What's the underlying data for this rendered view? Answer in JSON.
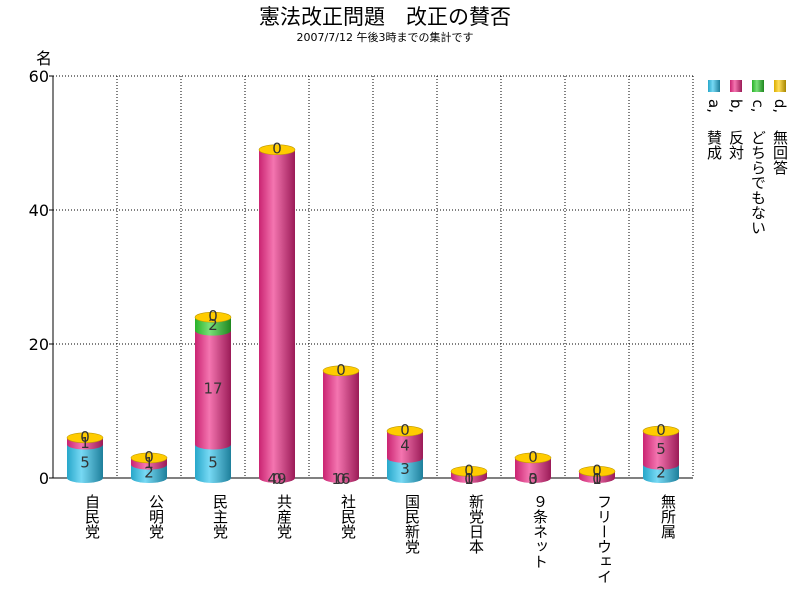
{
  "chart_data": {
    "type": "bar",
    "stacked": true,
    "title": "憲法改正問題　改正の賛否",
    "subtitle": "2007/7/12 午後3時までの集計です",
    "ylabel": "名",
    "xlabel": "",
    "ylim": [
      0,
      60
    ],
    "yticks": [
      0,
      20,
      40,
      60
    ],
    "grid": true,
    "legend_position": "right",
    "categories": [
      "自民党",
      "公明党",
      "民主党",
      "共産党",
      "社民党",
      "国民新党",
      "新党日本",
      "９条ネット",
      "フリーウェイ",
      "無所属"
    ],
    "series": [
      {
        "name": "a,賛成",
        "letter": "a,",
        "label": "賛成",
        "color": "#2ec4ee",
        "values": [
          5,
          2,
          5,
          0,
          0,
          3,
          0,
          0,
          0,
          2
        ]
      },
      {
        "name": "b,反対",
        "letter": "b,",
        "label": "反対",
        "color": "#ee2a86",
        "values": [
          1,
          1,
          17,
          49,
          16,
          4,
          1,
          3,
          1,
          5
        ]
      },
      {
        "name": "c,どちらでもない",
        "letter": "c,",
        "label": "どちらでもない",
        "color": "#2fd02f",
        "values": [
          0,
          0,
          2,
          0,
          0,
          0,
          0,
          0,
          0,
          0
        ]
      },
      {
        "name": "d,無回答",
        "letter": "d,",
        "label": "無回答",
        "color": "#ffcc00",
        "values": [
          0,
          0,
          0,
          0,
          0,
          0,
          0,
          0,
          0,
          0
        ]
      }
    ],
    "bar_labels": [
      [
        "5",
        "1",
        "0"
      ],
      [
        "2",
        "1",
        "0"
      ],
      [
        "5",
        "17",
        "2",
        "0"
      ],
      [
        "0",
        "49",
        "0"
      ],
      [
        "0",
        "16",
        "0"
      ],
      [
        "3",
        "4",
        "0"
      ],
      [
        "0",
        "1",
        "0"
      ],
      [
        "0",
        "3",
        "0"
      ],
      [
        "0",
        "1",
        "0"
      ],
      [
        "2",
        "5",
        "0"
      ]
    ]
  }
}
